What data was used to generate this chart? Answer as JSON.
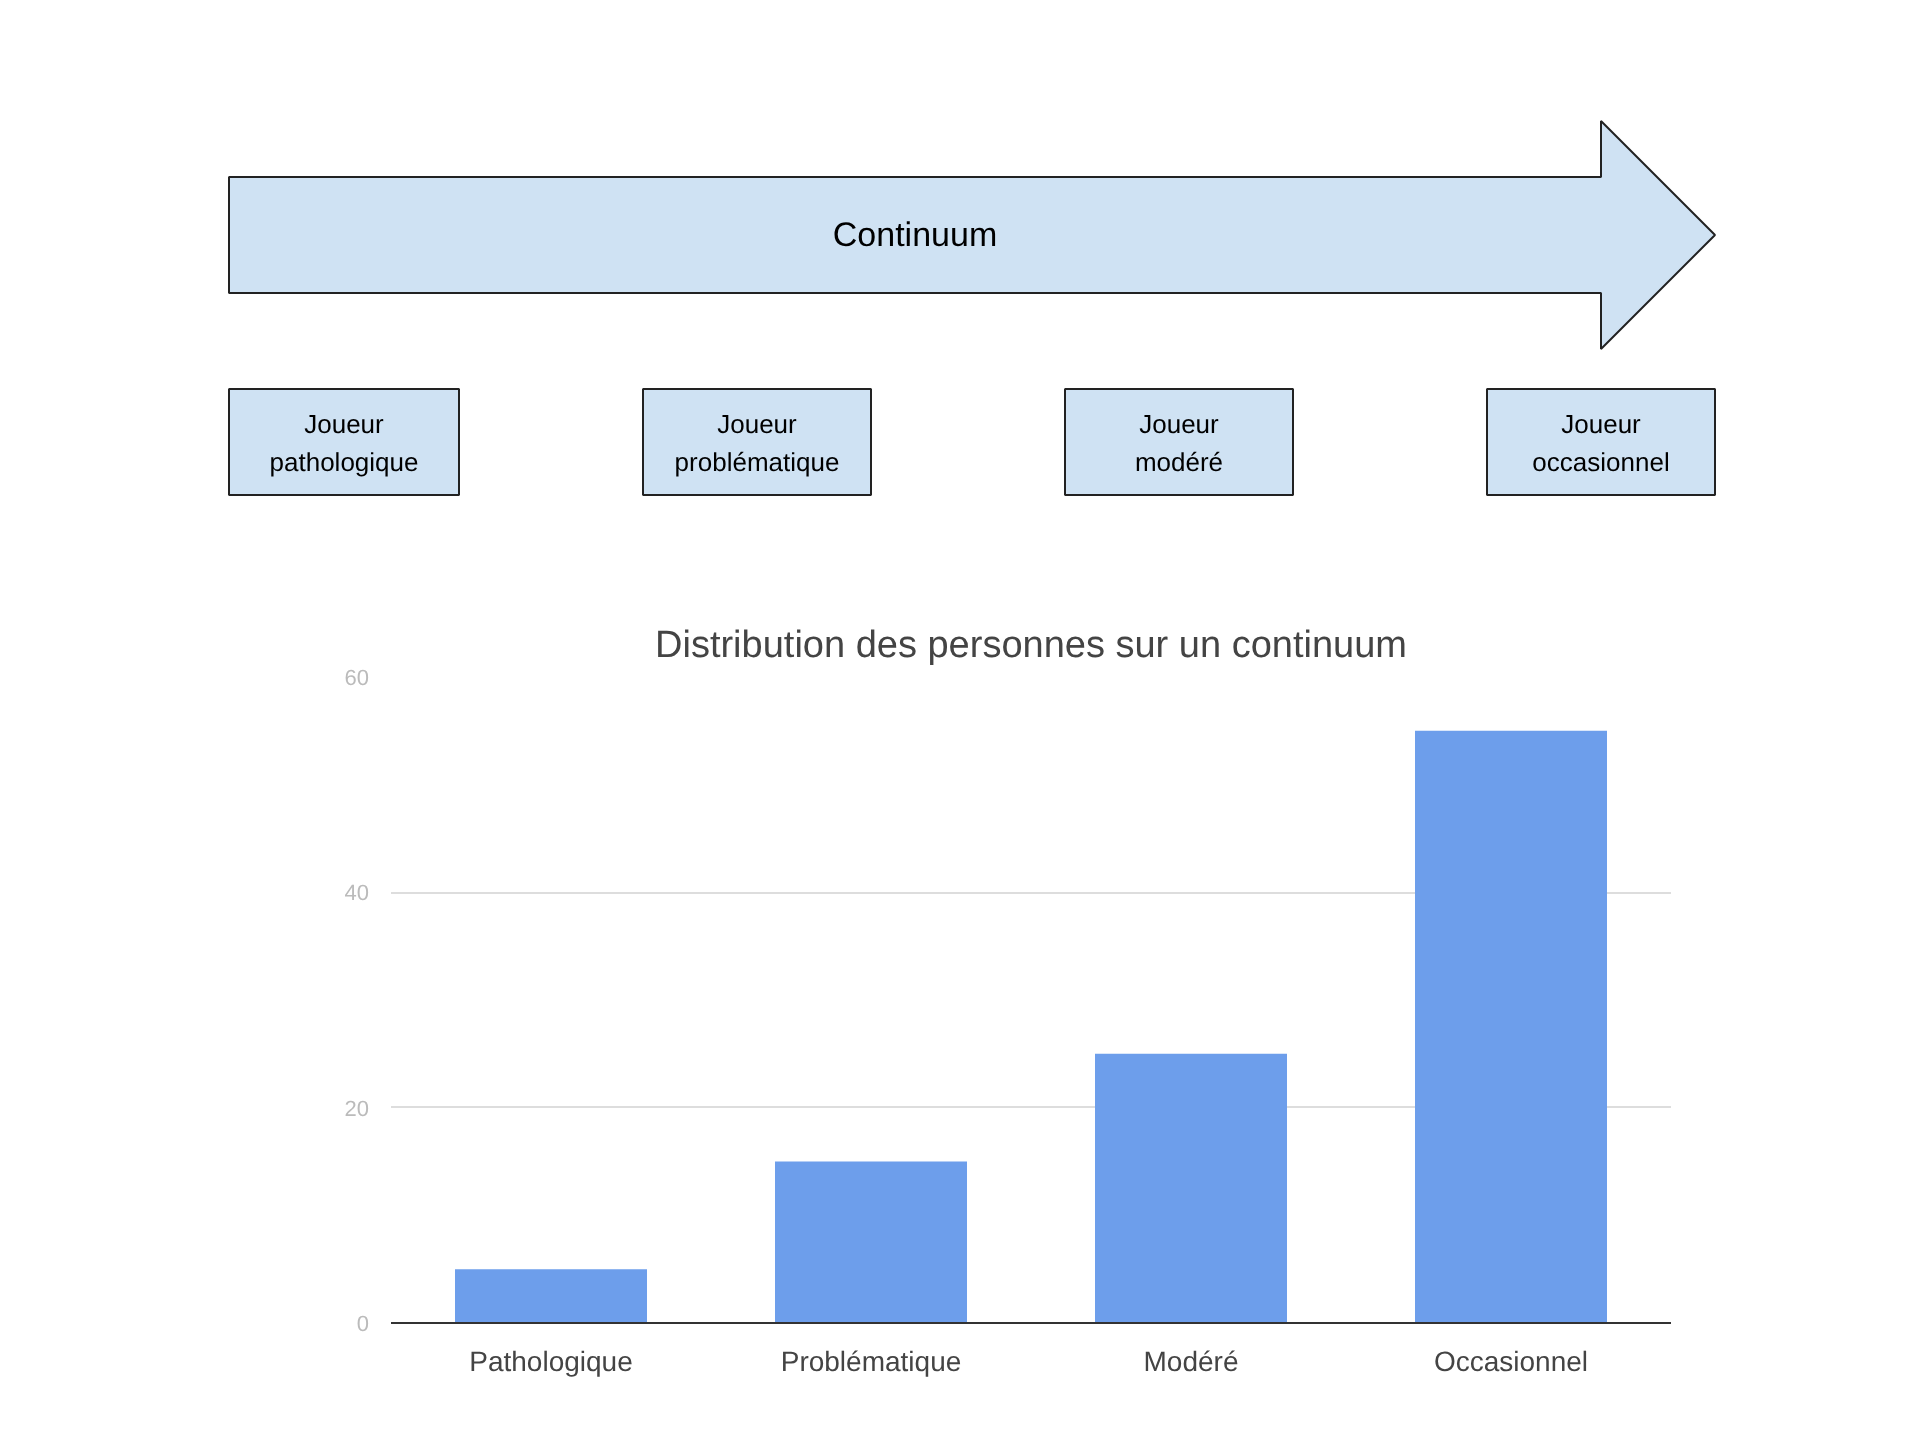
{
  "chart_data": {
    "type": "bar",
    "title": "Distribution des personnes sur un continuum",
    "categories": [
      "Pathologique",
      "Problématique",
      "Modéré",
      "Occasionnel"
    ],
    "values": [
      5,
      15,
      25,
      55
    ],
    "color": "#6d9eeb",
    "ylim": [
      0,
      60
    ],
    "yticks": [
      0,
      20,
      40,
      60
    ],
    "grid": "y",
    "annotations": [
      "Continuum",
      "Joueur\npathologique",
      "Joueur\nproblématique",
      "Joueur\nmodéré",
      "Joueur\noccasionnel"
    ]
  }
}
